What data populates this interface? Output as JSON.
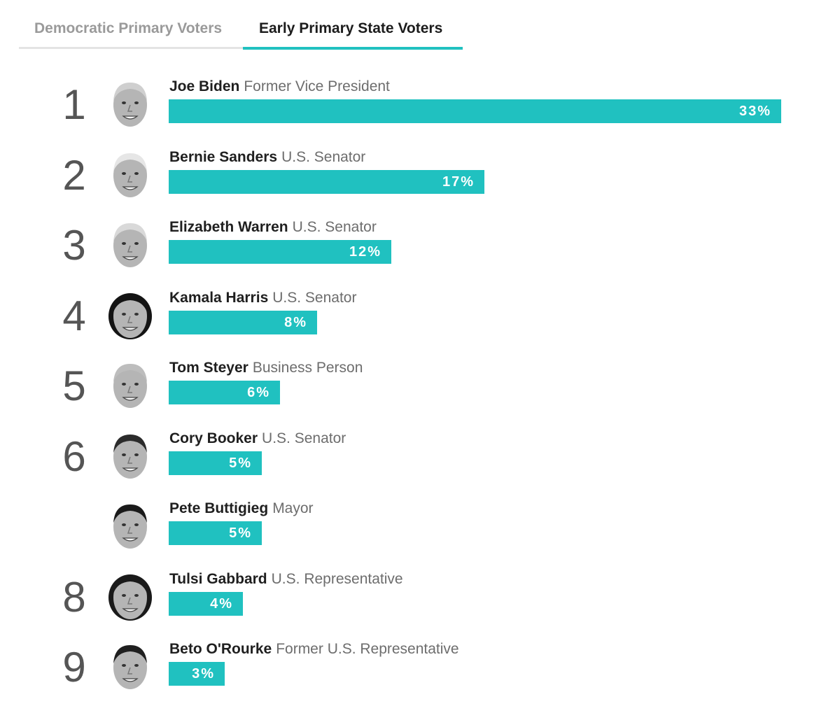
{
  "tabs": [
    {
      "label": "Democratic Primary Voters",
      "active": false
    },
    {
      "label": "Early Primary State Voters",
      "active": true
    }
  ],
  "colors": {
    "bar": "#20c1c0",
    "tab_active": "#1c1c1c",
    "tab_inactive": "#9a9a9a"
  },
  "chart_data": {
    "type": "bar",
    "orientation": "horizontal",
    "xlim": [
      0,
      33
    ],
    "categories": [
      "Joe Biden",
      "Bernie Sanders",
      "Elizabeth Warren",
      "Kamala Harris",
      "Tom Steyer",
      "Cory Booker",
      "Pete Buttigieg",
      "Tulsi Gabbard",
      "Beto O'Rourke"
    ],
    "values": [
      33,
      17,
      12,
      8,
      6,
      5,
      5,
      4,
      3
    ],
    "candidates": [
      {
        "rank": "1",
        "name": "Joe Biden",
        "title": "Former Vice President",
        "value": 33,
        "label": "33%",
        "avatar": "portrait-icon"
      },
      {
        "rank": "2",
        "name": "Bernie Sanders",
        "title": "U.S. Senator",
        "value": 17,
        "label": "17%",
        "avatar": "portrait-icon"
      },
      {
        "rank": "3",
        "name": "Elizabeth Warren",
        "title": "U.S. Senator",
        "value": 12,
        "label": "12%",
        "avatar": "portrait-icon"
      },
      {
        "rank": "4",
        "name": "Kamala Harris",
        "title": "U.S. Senator",
        "value": 8,
        "label": "8%",
        "avatar": "portrait-icon"
      },
      {
        "rank": "5",
        "name": "Tom Steyer",
        "title": "Business Person",
        "value": 6,
        "label": "6%",
        "avatar": "portrait-icon"
      },
      {
        "rank": "6",
        "name": "Cory Booker",
        "title": "U.S. Senator",
        "value": 5,
        "label": "5%",
        "avatar": "portrait-icon"
      },
      {
        "rank": "",
        "name": "Pete Buttigieg",
        "title": "Mayor",
        "value": 5,
        "label": "5%",
        "avatar": "portrait-icon"
      },
      {
        "rank": "8",
        "name": "Tulsi Gabbard",
        "title": "U.S. Representative",
        "value": 4,
        "label": "4%",
        "avatar": "portrait-icon"
      },
      {
        "rank": "9",
        "name": "Beto O'Rourke",
        "title": "Former U.S. Representative",
        "value": 3,
        "label": "3%",
        "avatar": "portrait-icon"
      }
    ]
  }
}
